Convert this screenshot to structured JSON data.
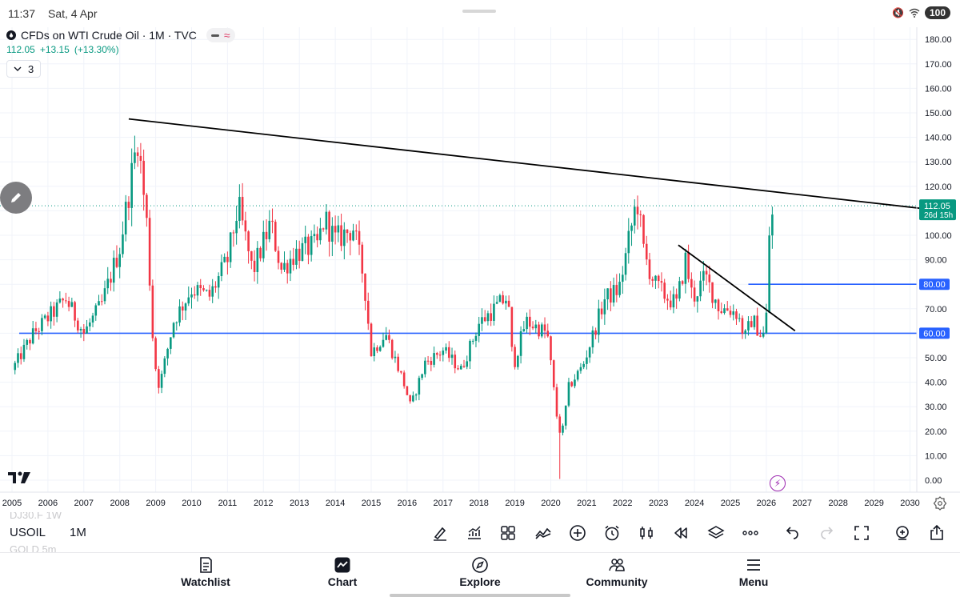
{
  "status_bar": {
    "time": "11:37",
    "date": "Sat, 4 Apr",
    "battery": "100"
  },
  "legend": {
    "title": "CFDs on WTI Crude Oil · 1M · TVC",
    "price": "112.05",
    "change": "+13.15",
    "change_pct": "(+13.30%)",
    "indicator_count": "3",
    "collapse_icon": "chevron-down-icon"
  },
  "colors": {
    "up": "#089981",
    "down": "#f23645",
    "level_line": "#2962ff",
    "trendline": "#000000",
    "price_line": "#089981"
  },
  "chart_data": {
    "type": "candlestick",
    "title": "CFDs on WTI Crude Oil · 1M · TVC",
    "ylim": [
      -2,
      182
    ],
    "xlim": [
      2005.0,
      2030.9
    ],
    "y_ticks": [
      "180.00",
      "170.00",
      "160.00",
      "150.00",
      "140.00",
      "130.00",
      "120.00",
      "110.00",
      "100.00",
      "90.00",
      "80.00",
      "70.00",
      "60.00",
      "50.00",
      "40.00",
      "30.00",
      "20.00",
      "10.00",
      "0.00"
    ],
    "x_ticks": [
      "2005",
      "2006",
      "2007",
      "2008",
      "2009",
      "2010",
      "2011",
      "2012",
      "2013",
      "2014",
      "2015",
      "2016",
      "2017",
      "2018",
      "2019",
      "2020",
      "2021",
      "2022",
      "2023",
      "2024",
      "2025",
      "2026",
      "2027",
      "2028",
      "2029",
      "2030"
    ],
    "current_price": {
      "value": 112.05,
      "label": "112.05",
      "countdown": "26d 15h"
    },
    "horizontal_levels": [
      {
        "value": 80,
        "label": "80.00",
        "from_x": 2025.5
      },
      {
        "value": 60,
        "label": "60.00",
        "from_x": 2005.2
      }
    ],
    "trendlines": [
      {
        "from": [
          2008.25,
          147.5
        ],
        "to": [
          2030.9,
          110.0
        ]
      },
      {
        "from": [
          2023.55,
          96.0
        ],
        "to": [
          2026.8,
          61.0
        ]
      }
    ],
    "anchors": [
      [
        2005.0,
        45
      ],
      [
        2005.6,
        60
      ],
      [
        2006.5,
        74
      ],
      [
        2007.0,
        60
      ],
      [
        2007.5,
        72
      ],
      [
        2008.0,
        95
      ],
      [
        2008.5,
        140
      ],
      [
        2008.75,
        105
      ],
      [
        2008.95,
        50
      ],
      [
        2009.1,
        38
      ],
      [
        2009.5,
        65
      ],
      [
        2010.0,
        78
      ],
      [
        2010.5,
        75
      ],
      [
        2011.0,
        90
      ],
      [
        2011.3,
        112
      ],
      [
        2011.7,
        85
      ],
      [
        2012.2,
        105
      ],
      [
        2012.5,
        86
      ],
      [
        2012.9,
        93
      ],
      [
        2013.5,
        96
      ],
      [
        2013.7,
        107
      ],
      [
        2014.0,
        98
      ],
      [
        2014.5,
        103
      ],
      [
        2014.8,
        82
      ],
      [
        2015.0,
        52
      ],
      [
        2015.4,
        60
      ],
      [
        2015.9,
        40
      ],
      [
        2016.1,
        30
      ],
      [
        2016.5,
        48
      ],
      [
        2017.0,
        53
      ],
      [
        2017.5,
        45
      ],
      [
        2018.0,
        64
      ],
      [
        2018.8,
        75
      ],
      [
        2018.95,
        46
      ],
      [
        2019.3,
        65
      ],
      [
        2019.9,
        60
      ],
      [
        2020.2,
        22
      ],
      [
        2020.3,
        18
      ],
      [
        2020.5,
        38
      ],
      [
        2020.9,
        47
      ],
      [
        2021.5,
        74
      ],
      [
        2021.9,
        78
      ],
      [
        2022.2,
        100
      ],
      [
        2022.4,
        115
      ],
      [
        2022.6,
        92
      ],
      [
        2022.9,
        80
      ],
      [
        2023.2,
        75
      ],
      [
        2023.5,
        72
      ],
      [
        2023.75,
        90
      ],
      [
        2023.95,
        74
      ],
      [
        2024.3,
        83
      ],
      [
        2024.7,
        70
      ],
      [
        2024.95,
        70
      ],
      [
        2025.2,
        68
      ],
      [
        2025.4,
        58
      ],
      [
        2025.6,
        66
      ],
      [
        2025.9,
        58
      ],
      [
        2026.0,
        67
      ],
      [
        2026.08,
        100
      ],
      [
        2026.22,
        112
      ]
    ]
  },
  "toolbar": {
    "ghost_top": "DJ30.F 1W",
    "symbol": "USOIL",
    "interval": "1M",
    "ghost_bottom": "GOLD 5m",
    "tools": [
      "brush-icon",
      "indicators-icon",
      "layouts-icon",
      "compare-icon",
      "add-icon",
      "alert-icon",
      "bar-style-icon",
      "replay-icon",
      "layers-icon",
      "more-icon",
      "undo-icon",
      "redo-icon",
      "fullscreen-icon",
      "zoom-in-icon",
      "share-icon"
    ]
  },
  "nav": {
    "items": [
      {
        "label": "Watchlist",
        "icon": "watchlist-icon"
      },
      {
        "label": "Chart",
        "icon": "chart-icon"
      },
      {
        "label": "Explore",
        "icon": "compass-icon"
      },
      {
        "label": "Community",
        "icon": "community-icon"
      },
      {
        "label": "Menu",
        "icon": "menu-icon"
      }
    ]
  }
}
